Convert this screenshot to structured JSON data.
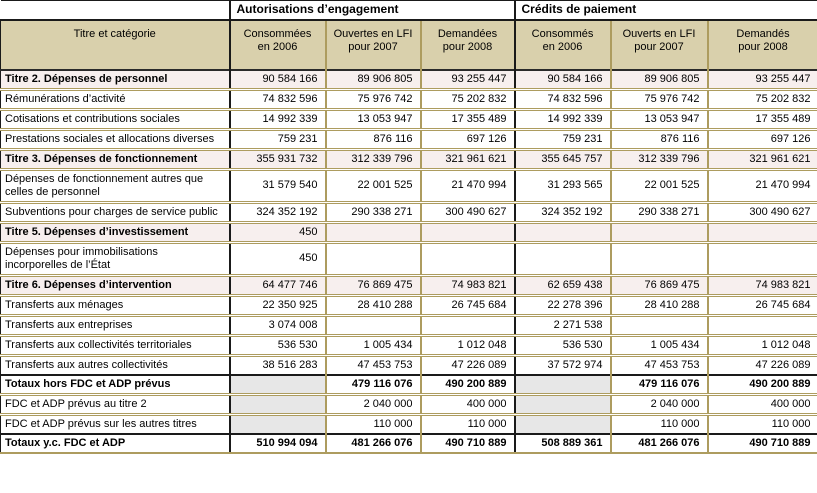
{
  "colors": {
    "header_bg": "#d9d0ac",
    "title_row_bg": "#f7efee",
    "disabled_cell_bg": "#e7e7e7",
    "border_gold": "#ad9c5f",
    "line_black": "#1a1a1a"
  },
  "table": {
    "corner_label": "Titre et catégorie",
    "groups": [
      {
        "label": "Autorisations d’engagement",
        "columns": [
          "Consommées\nen 2006",
          "Ouvertes en LFI\npour 2007",
          "Demandées\npour 2008"
        ]
      },
      {
        "label": "Crédits de paiement",
        "columns": [
          "Consommés\nen 2006",
          "Ouverts en LFI\npour 2007",
          "Demandés\npour 2008"
        ]
      }
    ],
    "rows": [
      {
        "label": "Titre 2. Dépenses de personnel",
        "style": "title",
        "values": [
          "90 584 166",
          "89 906 805",
          "93 255 447",
          "90 584 166",
          "89 906 805",
          "93 255 447"
        ]
      },
      {
        "label": "Rémunérations d’activité",
        "style": "normal",
        "values": [
          "74 832 596",
          "75 976 742",
          "75 202 832",
          "74 832 596",
          "75 976 742",
          "75 202 832"
        ]
      },
      {
        "label": "Cotisations et contributions sociales",
        "style": "normal",
        "values": [
          "14 992 339",
          "13 053 947",
          "17 355 489",
          "14 992 339",
          "13 053 947",
          "17 355 489"
        ]
      },
      {
        "label": "Prestations sociales et allocations diverses",
        "style": "normal",
        "values": [
          "759 231",
          "876 116",
          "697 126",
          "759 231",
          "876 116",
          "697 126"
        ]
      },
      {
        "label": "Titre 3. Dépenses de fonctionnement",
        "style": "title",
        "values": [
          "355 931 732",
          "312 339 796",
          "321 961 621",
          "355 645 757",
          "312 339 796",
          "321 961 621"
        ]
      },
      {
        "label": "Dépenses de fonctionnement autres que celles de personnel",
        "style": "normal",
        "values": [
          "31 579 540",
          "22 001 525",
          "21 470 994",
          "31 293 565",
          "22 001 525",
          "21 470 994"
        ]
      },
      {
        "label": "Subventions pour charges de service public",
        "style": "normal",
        "values": [
          "324 352 192",
          "290 338 271",
          "300 490 627",
          "324 352 192",
          "290 338 271",
          "300 490 627"
        ]
      },
      {
        "label": "Titre 5. Dépenses d’investissement",
        "style": "title",
        "values": [
          "450",
          "",
          "",
          "",
          "",
          ""
        ]
      },
      {
        "label": "Dépenses pour immobilisations incorporelles de l’État",
        "style": "normal",
        "values": [
          "450",
          "",
          "",
          "",
          "",
          ""
        ]
      },
      {
        "label": "Titre 6. Dépenses d’intervention",
        "style": "title",
        "values": [
          "64 477 746",
          "76 869 475",
          "74 983 821",
          "62 659 438",
          "76 869 475",
          "74 983 821"
        ]
      },
      {
        "label": "Transferts aux ménages",
        "style": "normal",
        "values": [
          "22 350 925",
          "28 410 288",
          "26 745 684",
          "22 278 396",
          "28 410 288",
          "26 745 684"
        ]
      },
      {
        "label": "Transferts aux entreprises",
        "style": "normal",
        "values": [
          "3 074 008",
          "",
          "",
          "2 271 538",
          "",
          ""
        ]
      },
      {
        "label": "Transferts aux collectivités territoriales",
        "style": "normal",
        "values": [
          "536 530",
          "1 005 434",
          "1 012 048",
          "536 530",
          "1 005 434",
          "1 012 048"
        ]
      },
      {
        "label": "Transferts aux autres collectivités",
        "style": "normal",
        "values": [
          "38 516 283",
          "47 453 753",
          "47 226 089",
          "37 572 974",
          "47 453 753",
          "47 226 089"
        ]
      },
      {
        "label": "Totaux hors FDC et ADP prévus",
        "style": "total",
        "gray": [
          0,
          3
        ],
        "values": [
          "",
          "479 116 076",
          "490 200 889",
          "",
          "479 116 076",
          "490 200 889"
        ]
      },
      {
        "label": "FDC et ADP prévus au titre 2",
        "style": "normal",
        "gray": [
          0,
          3
        ],
        "values": [
          "",
          "2 040 000",
          "400 000",
          "",
          "2 040 000",
          "400 000"
        ]
      },
      {
        "label": "FDC et ADP prévus sur les autres titres",
        "style": "normal",
        "gray": [
          0,
          3
        ],
        "values": [
          "",
          "110 000",
          "110 000",
          "",
          "110 000",
          "110 000"
        ]
      },
      {
        "label": "Totaux y.c. FDC et ADP",
        "style": "total",
        "values": [
          "510 994 094",
          "481 266 076",
          "490 710 889",
          "508 889 361",
          "481 266 076",
          "490 710 889"
        ]
      }
    ]
  }
}
